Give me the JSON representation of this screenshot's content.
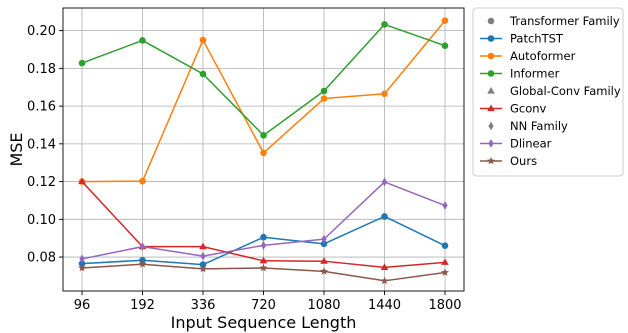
{
  "chart_data": {
    "type": "line",
    "xlabel": "Input Sequence Length",
    "ylabel": "MSE",
    "categories": [
      "96",
      "192",
      "336",
      "720",
      "1080",
      "1440",
      "1800"
    ],
    "yticks": [
      "0.08",
      "0.10",
      "0.12",
      "0.14",
      "0.16",
      "0.18",
      "0.20"
    ],
    "ylim": [
      0.062,
      0.212
    ],
    "grid": true,
    "legend_position": "right-outside",
    "series": [
      {
        "name": "PatchTST",
        "color": "#1f77b4",
        "marker": "circle",
        "values": [
          0.0765,
          0.0783,
          0.076,
          0.0905,
          0.087,
          0.1015,
          0.086
        ]
      },
      {
        "name": "Autoformer",
        "color": "#ff7f0e",
        "marker": "circle",
        "values": [
          0.12,
          0.1202,
          0.195,
          0.1352,
          0.164,
          0.1665,
          0.2053
        ]
      },
      {
        "name": "Informer",
        "color": "#2ca02c",
        "marker": "circle",
        "values": [
          0.1828,
          0.1948,
          0.177,
          0.1445,
          0.168,
          0.2033,
          0.192
        ]
      },
      {
        "name": "Gconv",
        "color": "#d62728",
        "marker": "triangle",
        "values": [
          0.12,
          0.0855,
          0.0855,
          0.078,
          0.0778,
          0.0745,
          0.0772
        ]
      },
      {
        "name": "Dlinear",
        "color": "#9467bd",
        "marker": "diamond",
        "values": [
          0.079,
          0.0855,
          0.0805,
          0.0862,
          0.0895,
          0.1198,
          0.1073
        ]
      },
      {
        "name": "Ours",
        "color": "#8c564b",
        "marker": "star",
        "values": [
          0.0742,
          0.0762,
          0.0737,
          0.0742,
          0.0724,
          0.0674,
          0.0718
        ]
      }
    ],
    "legend": [
      {
        "label": "Transformer Family",
        "marker": "circle",
        "color": "#7f7f7f",
        "line": false
      },
      {
        "label": "PatchTST",
        "series": 0
      },
      {
        "label": "Autoformer",
        "series": 1
      },
      {
        "label": "Informer",
        "series": 2
      },
      {
        "label": "Global-Conv Family",
        "marker": "triangle",
        "color": "#7f7f7f",
        "line": false
      },
      {
        "label": "Gconv",
        "series": 3
      },
      {
        "label": "NN Family",
        "marker": "diamond",
        "color": "#7f7f7f",
        "line": false
      },
      {
        "label": "Dlinear",
        "series": 4
      },
      {
        "label": "Ours",
        "series": 5
      }
    ]
  }
}
